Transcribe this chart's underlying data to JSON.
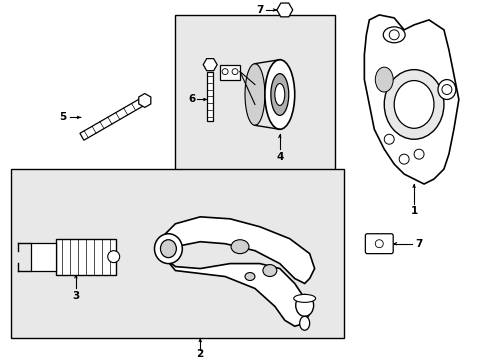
{
  "background_color": "#ffffff",
  "box_color": "#e8e8e8",
  "figsize": [
    4.89,
    3.6
  ],
  "dpi": 100,
  "line_color": "#000000",
  "part_fill": "#ffffff",
  "part_edge": "#000000"
}
